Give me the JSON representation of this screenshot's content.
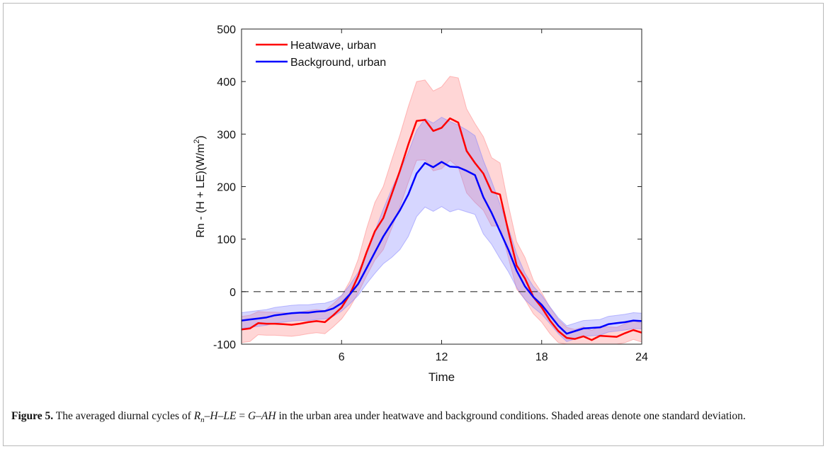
{
  "chart_data": {
    "type": "line",
    "xlabel": "Time",
    "ylabel": "Rn - (H + LE)(W/m",
    "ylabel_sup": "2",
    "ylabel_close": ")",
    "xlim": [
      0,
      24
    ],
    "ylim": [
      -100,
      500
    ],
    "xticks": [
      6,
      12,
      18,
      24
    ],
    "yticks": [
      -100,
      0,
      100,
      200,
      300,
      400,
      500
    ],
    "grid": false,
    "legend_position": "top-left",
    "reference_line": {
      "y": 0,
      "style": "dashed",
      "color": "#333333"
    },
    "x": [
      0,
      0.5,
      1,
      1.5,
      2,
      2.5,
      3,
      3.5,
      4,
      4.5,
      5,
      5.5,
      6,
      6.5,
      7,
      7.5,
      8,
      8.5,
      9,
      9.5,
      10,
      10.5,
      11,
      11.5,
      12,
      12.5,
      13,
      13.5,
      14,
      14.5,
      15,
      15.5,
      16,
      16.5,
      17,
      17.5,
      18,
      18.5,
      19,
      19.5,
      20,
      20.5,
      21,
      21.5,
      22,
      22.5,
      23,
      23.5,
      24
    ],
    "series": [
      {
        "name": "Heatwave, urban",
        "color": "#ff0000",
        "band_color": "#ff8080",
        "values": [
          -72,
          -70,
          -60,
          -61,
          -61,
          -62,
          -63,
          -61,
          -58,
          -56,
          -58,
          -45,
          -30,
          -5,
          30,
          75,
          115,
          140,
          185,
          230,
          280,
          325,
          327,
          306,
          312,
          330,
          322,
          268,
          245,
          225,
          190,
          185,
          115,
          50,
          25,
          -10,
          -30,
          -55,
          -75,
          -88,
          -90,
          -85,
          -92,
          -84,
          -85,
          -86,
          -79,
          -73,
          -78
        ],
        "std": [
          25,
          25,
          22,
          22,
          22,
          22,
          22,
          22,
          22,
          22,
          22,
          22,
          22,
          25,
          32,
          45,
          55,
          60,
          65,
          68,
          72,
          75,
          76,
          76,
          78,
          80,
          85,
          80,
          75,
          70,
          65,
          60,
          50,
          45,
          40,
          32,
          28,
          25,
          22,
          20,
          18,
          18,
          18,
          18,
          18,
          18,
          18,
          18,
          18
        ]
      },
      {
        "name": "Background, urban",
        "color": "#0000ff",
        "band_color": "#8080ff",
        "values": [
          -55,
          -53,
          -51,
          -49,
          -45,
          -43,
          -41,
          -40,
          -40,
          -38,
          -37,
          -32,
          -22,
          -5,
          15,
          45,
          75,
          105,
          130,
          155,
          185,
          225,
          245,
          237,
          247,
          238,
          237,
          230,
          222,
          180,
          150,
          115,
          80,
          40,
          10,
          -10,
          -25,
          -45,
          -65,
          -80,
          -75,
          -70,
          -69,
          -68,
          -62,
          -60,
          -58,
          -55,
          -56
        ],
        "std": [
          15,
          15,
          15,
          15,
          15,
          15,
          15,
          15,
          15,
          15,
          15,
          15,
          15,
          18,
          22,
          30,
          40,
          52,
          65,
          75,
          80,
          82,
          84,
          84,
          85,
          86,
          80,
          78,
          75,
          70,
          60,
          52,
          42,
          32,
          25,
          20,
          18,
          16,
          15,
          15,
          15,
          15,
          15,
          15,
          15,
          15,
          15,
          15,
          15
        ]
      }
    ]
  },
  "caption": {
    "figure_label": "Figure 5.",
    "text_1": "The averaged diurnal cycles of ",
    "eq_R": "R",
    "eq_sub": "n",
    "eq_rest": "–H–LE",
    "eq_eq": " = ",
    "eq_rhs": "G–AH",
    "text_2": " in the urban area under heatwave and background conditions. Shaded areas denote one standard deviation."
  }
}
